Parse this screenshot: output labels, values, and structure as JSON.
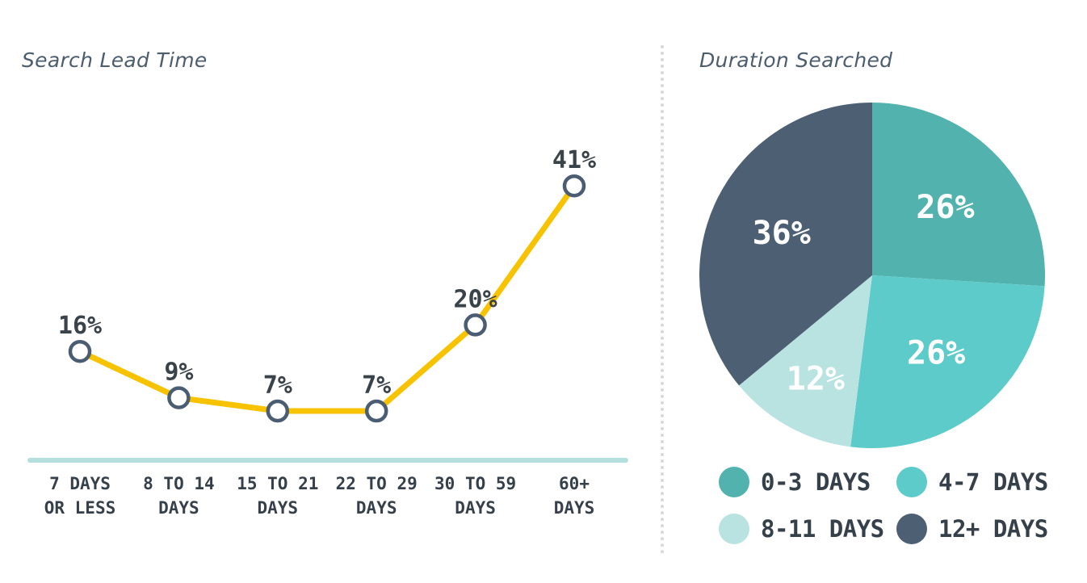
{
  "chart_data": [
    {
      "type": "line",
      "title": "Search Lead Time",
      "categories": [
        "7 DAYS|OR LESS",
        "8 TO 14|DAYS",
        "15 TO 21|DAYS",
        "22 TO 29|DAYS",
        "30 TO 59|DAYS",
        "60+|DAYS"
      ],
      "values": [
        16,
        9,
        7,
        7,
        20,
        41
      ],
      "value_labels": [
        "16%",
        "9%",
        "7%",
        "7%",
        "20%",
        "41%"
      ],
      "unit": "%",
      "ylim": [
        0,
        45
      ],
      "grid": false,
      "colors": {
        "line": "#f7c200",
        "marker_stroke": "#4b5d73",
        "marker_fill": "#ffffff",
        "baseline": "#b3e0df",
        "label": "#3a424a"
      }
    },
    {
      "type": "pie",
      "title": "Duration Searched",
      "slices": [
        {
          "label": "0-3 DAYS",
          "value": 26,
          "display": "26%",
          "color": "#52b3ae"
        },
        {
          "label": "4-7 DAYS",
          "value": 26,
          "display": "26%",
          "color": "#5ecbcb"
        },
        {
          "label": "8-11 DAYS",
          "value": 12,
          "display": "12%",
          "color": "#b8e3e0"
        },
        {
          "label": "12+ DAYS",
          "value": 36,
          "display": "36%",
          "color": "#4d5f73"
        }
      ],
      "legend_position": "bottom"
    }
  ]
}
